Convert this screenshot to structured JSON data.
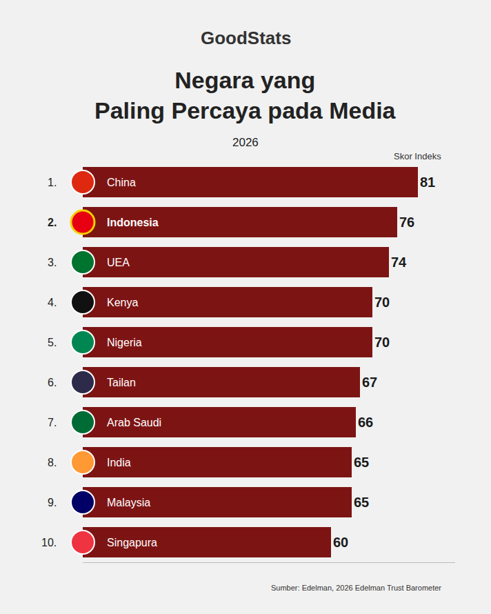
{
  "chart_data": {
    "type": "bar",
    "orientation": "horizontal",
    "brand": "GoodStats",
    "title": "Negara yang Paling Percaya pada Media",
    "subtitle": "2026",
    "xlabel": "Skor Indeks",
    "source": "Sumber: Edelman, 2026 Edelman Trust Barometer",
    "ranks": [
      "1.",
      "2.",
      "3.",
      "4.",
      "5.",
      "6.",
      "7.",
      "8.",
      "9.",
      "10."
    ],
    "categories": [
      "China",
      "Indonesia",
      "UEA",
      "Kenya",
      "Nigeria",
      "Tailan",
      "Arab Saudi",
      "India",
      "Malaysia",
      "Singapura"
    ],
    "values": [
      81,
      76,
      74,
      70,
      70,
      67,
      66,
      65,
      65,
      60
    ],
    "color": "#7d1414",
    "xlim": [
      0,
      90
    ],
    "data_labels": true,
    "tick_labels": "y",
    "grid": false
  }
}
